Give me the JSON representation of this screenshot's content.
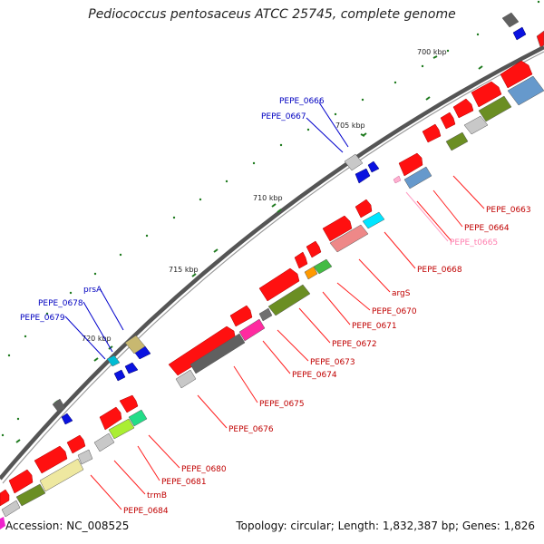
{
  "title": "Pediococcus pentosaceus ATCC 25745, complete genome",
  "footer": {
    "accession": "Accession: NC_008525",
    "summary": "Topology: circular; Length: 1,832,387 bp; Genes: 1,826"
  },
  "scale_labels": [
    "700 kbp",
    "705 kbp",
    "710 kbp",
    "715 kbp",
    "720 kbp"
  ],
  "colors": {
    "forward_gene": "#ff1010",
    "reverse_gene": "#0a12e0",
    "forward_label": "#c00000",
    "reverse_label": "#0000c0",
    "trna_label": "#ff80b0",
    "backbone": "#7a7a7a",
    "tick": "#1e7a1e"
  },
  "forward_labels": [
    "PEPE_0663",
    "PEPE_0664",
    "PEPE_t0665",
    "PEPE_0668",
    "argS",
    "PEPE_0670",
    "PEPE_0671",
    "PEPE_0672",
    "PEPE_0673",
    "PEPE_0674",
    "PEPE_0675",
    "PEPE_0676",
    "PEPE_0680",
    "PEPE_0681",
    "trmB",
    "PEPE_0684"
  ],
  "reverse_labels": [
    "PEPE_0666",
    "PEPE_0667",
    "prsA",
    "PEPE_0678",
    "PEPE_0679"
  ]
}
